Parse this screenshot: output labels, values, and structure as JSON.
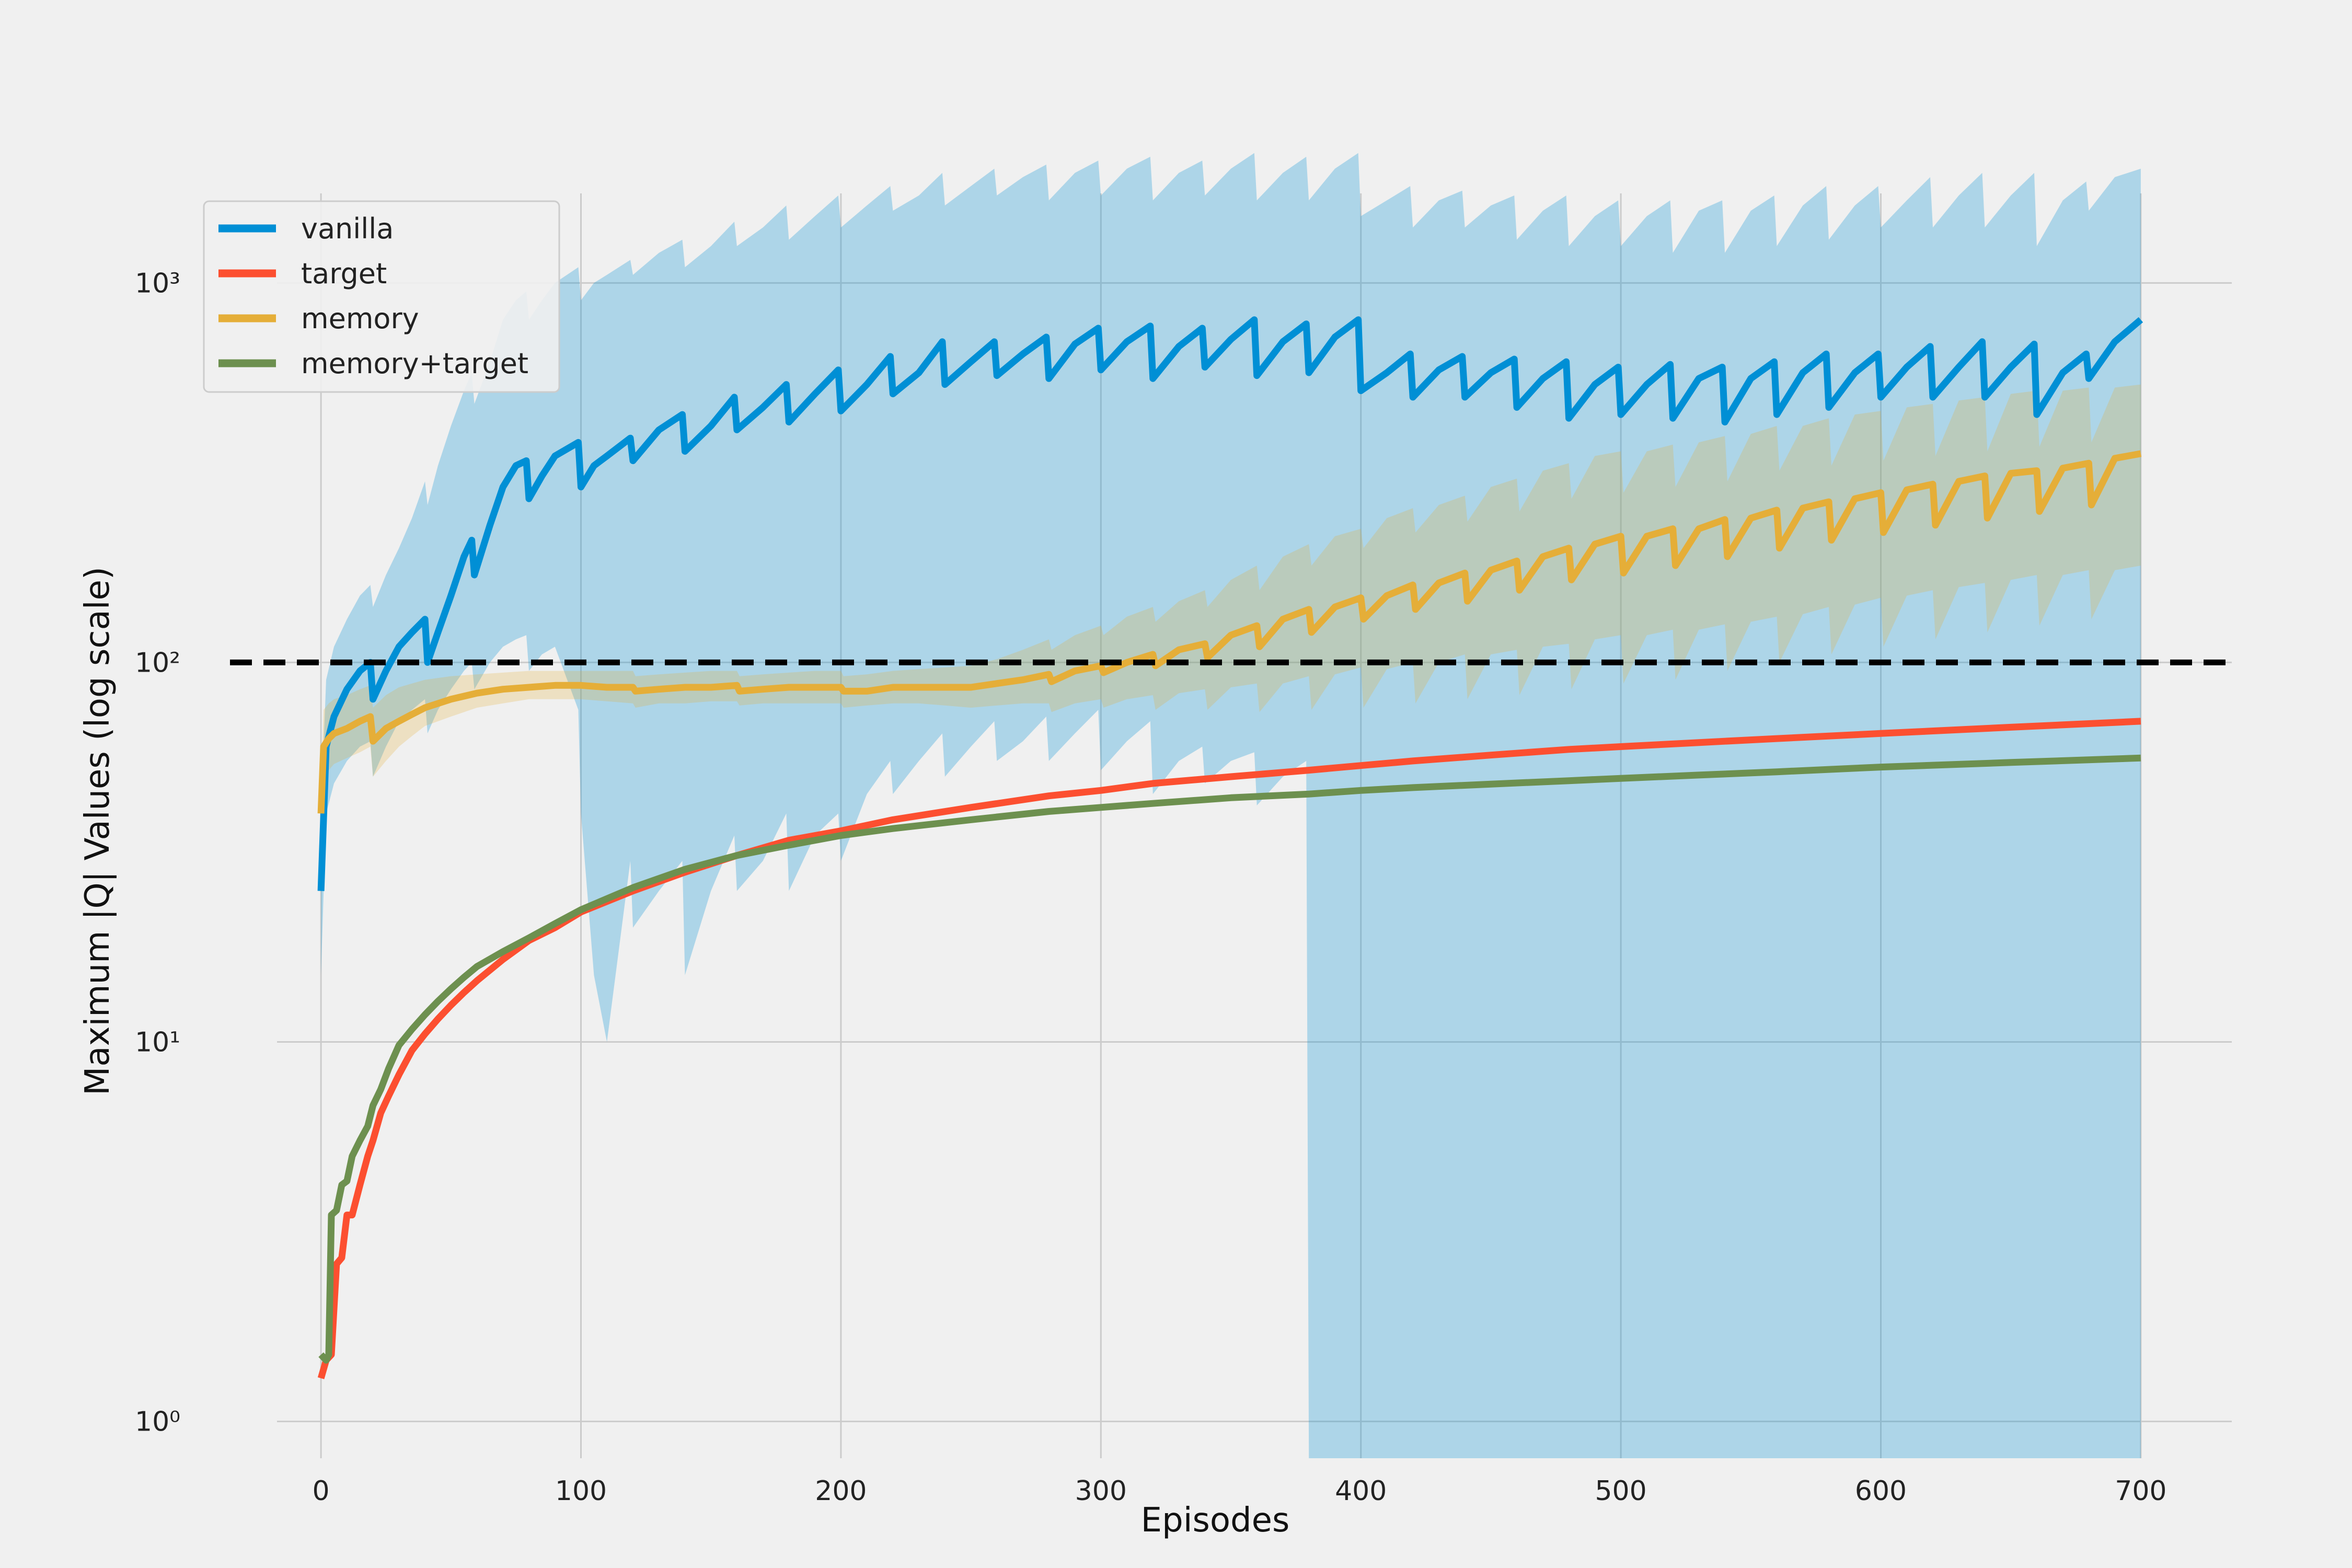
{
  "chart_data": {
    "type": "line",
    "title": "",
    "xlabel": "Episodes",
    "ylabel": "Maximum |Q| Values (log scale)",
    "yscale": "log",
    "xlim": [
      -35,
      735
    ],
    "ylim": [
      0.8,
      2600
    ],
    "xticks": [
      0,
      100,
      200,
      300,
      400,
      500,
      600,
      700
    ],
    "yticks": [
      {
        "value": 1,
        "label": "10⁰"
      },
      {
        "value": 10,
        "label": "10¹"
      },
      {
        "value": 100,
        "label": "10²"
      },
      {
        "value": 1000,
        "label": "10³"
      }
    ],
    "grid": true,
    "legend_position": "top-left",
    "reference_line": {
      "y": 100,
      "style": "dashed",
      "color": "#000000"
    },
    "series": [
      {
        "name": "vanilla",
        "color": "#008fd5",
        "x": [
          0,
          2,
          5,
          10,
          15,
          19,
          20,
          25,
          30,
          35,
          40,
          41,
          45,
          50,
          55,
          58,
          59,
          65,
          70,
          75,
          79,
          80,
          85,
          90,
          99,
          100,
          105,
          110,
          119,
          120,
          130,
          139,
          140,
          150,
          159,
          160,
          170,
          179,
          180,
          190,
          199,
          200,
          210,
          219,
          220,
          230,
          239,
          240,
          250,
          259,
          260,
          270,
          279,
          280,
          290,
          299,
          300,
          310,
          319,
          320,
          330,
          339,
          340,
          350,
          359,
          360,
          370,
          379,
          380,
          390,
          399,
          400,
          410,
          419,
          420,
          430,
          439,
          440,
          450,
          459,
          460,
          470,
          479,
          480,
          490,
          499,
          500,
          510,
          519,
          520,
          530,
          539,
          540,
          550,
          559,
          560,
          570,
          579,
          580,
          590,
          599,
          600,
          610,
          619,
          620,
          630,
          639,
          640,
          650,
          659,
          660,
          670,
          679,
          680,
          690,
          700
        ],
        "y": [
          25,
          60,
          72,
          85,
          95,
          100,
          80,
          95,
          110,
          120,
          130,
          100,
          120,
          150,
          190,
          210,
          170,
          230,
          290,
          330,
          340,
          270,
          310,
          350,
          380,
          290,
          330,
          350,
          390,
          340,
          410,
          450,
          360,
          420,
          500,
          410,
          470,
          540,
          430,
          510,
          590,
          460,
          540,
          640,
          510,
          580,
          700,
          540,
          620,
          700,
          570,
          650,
          720,
          560,
          690,
          760,
          590,
          700,
          770,
          560,
          680,
          760,
          600,
          710,
          800,
          570,
          700,
          780,
          580,
          720,
          800,
          520,
          580,
          650,
          500,
          590,
          640,
          500,
          580,
          630,
          470,
          560,
          620,
          440,
          540,
          600,
          450,
          540,
          610,
          440,
          560,
          600,
          430,
          560,
          620,
          450,
          580,
          650,
          470,
          580,
          650,
          500,
          600,
          680,
          500,
          600,
          700,
          500,
          600,
          690,
          450,
          580,
          650,
          560,
          700,
          800
        ],
        "band_upper": [
          40,
          90,
          110,
          130,
          150,
          160,
          140,
          170,
          200,
          240,
          300,
          260,
          330,
          420,
          520,
          580,
          480,
          620,
          800,
          900,
          950,
          800,
          900,
          1000,
          1100,
          900,
          1000,
          1050,
          1150,
          1050,
          1200,
          1300,
          1100,
          1250,
          1450,
          1250,
          1400,
          1600,
          1300,
          1500,
          1700,
          1400,
          1600,
          1800,
          1550,
          1700,
          1950,
          1600,
          1800,
          2000,
          1700,
          1900,
          2050,
          1650,
          1950,
          2100,
          1700,
          2000,
          2150,
          1650,
          1950,
          2100,
          1700,
          2000,
          2200,
          1650,
          1950,
          2150,
          1650,
          2000,
          2200,
          1500,
          1650,
          1800,
          1400,
          1650,
          1750,
          1400,
          1600,
          1700,
          1300,
          1550,
          1700,
          1250,
          1500,
          1650,
          1250,
          1500,
          1650,
          1200,
          1550,
          1650,
          1200,
          1550,
          1700,
          1250,
          1600,
          1800,
          1300,
          1600,
          1800,
          1400,
          1650,
          1900,
          1400,
          1700,
          1950,
          1400,
          1700,
          1950,
          1250,
          1650,
          1850,
          1550,
          1900,
          2000
        ],
        "band_lower": [
          15,
          40,
          48,
          55,
          60,
          62,
          50,
          60,
          70,
          75,
          80,
          65,
          75,
          85,
          95,
          100,
          85,
          100,
          110,
          115,
          118,
          95,
          105,
          110,
          75,
          40,
          15,
          10,
          30,
          20,
          25,
          30,
          15,
          25,
          35,
          25,
          30,
          40,
          25,
          35,
          40,
          30,
          45,
          55,
          45,
          55,
          65,
          50,
          60,
          70,
          55,
          62,
          72,
          55,
          65,
          75,
          52,
          62,
          70,
          45,
          55,
          60,
          48,
          55,
          58,
          42,
          50,
          55,
          0.5,
          0.5,
          0.5,
          0.5,
          0.5,
          0.5,
          0.5,
          0.5,
          0.5,
          0.5,
          0.5,
          0.5,
          0.5,
          0.5,
          0.5,
          0.5,
          0.5,
          0.5,
          0.5,
          0.5,
          0.5,
          0.5,
          0.5,
          0.5,
          0.5,
          0.5,
          0.5,
          0.5,
          0.5,
          0.5,
          0.5,
          0.5,
          0.5,
          0.5,
          0.5,
          0.5,
          0.5,
          0.5,
          0.5,
          0.5,
          0.5,
          0.5,
          0.5,
          0.5,
          0.5,
          0.5,
          0.5,
          0.5
        ]
      },
      {
        "name": "target",
        "color": "#fc4f30",
        "x": [
          0,
          2,
          4,
          6,
          8,
          10,
          12,
          15,
          18,
          20,
          23,
          26,
          30,
          35,
          40,
          45,
          50,
          55,
          60,
          70,
          80,
          90,
          100,
          120,
          140,
          160,
          180,
          200,
          220,
          250,
          280,
          300,
          320,
          350,
          380,
          400,
          420,
          450,
          480,
          500,
          530,
          560,
          600,
          650,
          700
        ],
        "y": [
          1.3,
          1.45,
          1.5,
          2.6,
          2.7,
          3.5,
          3.5,
          4.2,
          5.0,
          5.5,
          6.5,
          7.2,
          8.2,
          9.5,
          10.5,
          11.5,
          12.5,
          13.5,
          14.5,
          16.5,
          18.5,
          20,
          22,
          25,
          28,
          31,
          34,
          36,
          38.5,
          41.5,
          44.5,
          46,
          48,
          50,
          52,
          53.5,
          55,
          57,
          59,
          60,
          61.5,
          63,
          65,
          67.5,
          70
        ]
      },
      {
        "name": "memory",
        "color": "#e5ae38",
        "x": [
          0,
          1,
          3,
          5,
          10,
          15,
          19,
          20,
          25,
          30,
          35,
          40,
          50,
          60,
          70,
          80,
          90,
          100,
          110,
          120,
          121,
          130,
          140,
          150,
          160,
          161,
          170,
          180,
          190,
          200,
          201,
          210,
          220,
          230,
          240,
          250,
          260,
          270,
          280,
          281,
          290,
          300,
          301,
          310,
          320,
          321,
          330,
          340,
          341,
          350,
          360,
          361,
          370,
          380,
          381,
          390,
          400,
          401,
          410,
          420,
          421,
          430,
          440,
          441,
          450,
          460,
          461,
          470,
          480,
          481,
          490,
          500,
          501,
          510,
          520,
          521,
          530,
          540,
          541,
          550,
          560,
          561,
          570,
          580,
          581,
          590,
          600,
          601,
          610,
          620,
          621,
          630,
          640,
          641,
          650,
          660,
          661,
          670,
          680,
          681,
          690,
          700
        ],
        "y": [
          40,
          60,
          63,
          65,
          67,
          70,
          72,
          62,
          67,
          70,
          73,
          76,
          80,
          83,
          85,
          86,
          87,
          87,
          86,
          86,
          84,
          85,
          86,
          86,
          87,
          84,
          85,
          86,
          86,
          86,
          84,
          84,
          86,
          86,
          86,
          86,
          88,
          90,
          93,
          89,
          95,
          98,
          94,
          100,
          105,
          98,
          108,
          112,
          103,
          118,
          125,
          110,
          130,
          138,
          120,
          140,
          148,
          130,
          150,
          160,
          138,
          162,
          172,
          145,
          175,
          185,
          155,
          190,
          200,
          165,
          205,
          215,
          172,
          215,
          225,
          180,
          225,
          238,
          190,
          240,
          252,
          200,
          255,
          265,
          210,
          270,
          280,
          220,
          285,
          295,
          230,
          300,
          310,
          240,
          315,
          320,
          250,
          325,
          335,
          260,
          345,
          355
        ],
        "band_upper": [
          45,
          75,
          78,
          80,
          82,
          85,
          87,
          76,
          82,
          86,
          88,
          90,
          92,
          93,
          94,
          95,
          95,
          95,
          95,
          95,
          92,
          93,
          94,
          95,
          95,
          92,
          93,
          94,
          95,
          95,
          92,
          93,
          95,
          96,
          97,
          98,
          102,
          108,
          115,
          108,
          118,
          125,
          118,
          132,
          140,
          128,
          145,
          155,
          140,
          165,
          180,
          155,
          190,
          205,
          180,
          215,
          225,
          200,
          240,
          255,
          220,
          260,
          275,
          235,
          290,
          305,
          250,
          320,
          335,
          270,
          350,
          360,
          280,
          360,
          375,
          290,
          380,
          395,
          300,
          400,
          420,
          320,
          420,
          440,
          330,
          450,
          460,
          340,
          470,
          480,
          350,
          490,
          500,
          360,
          510,
          520,
          370,
          520,
          530,
          380,
          530,
          540
        ],
        "band_lower": [
          35,
          50,
          52,
          54,
          56,
          58,
          60,
          50,
          55,
          60,
          64,
          68,
          72,
          76,
          78,
          80,
          80,
          80,
          79,
          78,
          76,
          78,
          78,
          79,
          79,
          77,
          78,
          78,
          78,
          78,
          76,
          77,
          78,
          78,
          77,
          76,
          77,
          78,
          78,
          74,
          78,
          80,
          76,
          80,
          82,
          75,
          83,
          85,
          75,
          86,
          88,
          74,
          88,
          92,
          75,
          93,
          97,
          76,
          96,
          100,
          78,
          100,
          105,
          80,
          105,
          108,
          82,
          110,
          112,
          85,
          115,
          118,
          88,
          118,
          122,
          90,
          122,
          126,
          95,
          128,
          132,
          100,
          134,
          140,
          105,
          142,
          148,
          110,
          150,
          155,
          115,
          158,
          162,
          120,
          165,
          170,
          125,
          170,
          175,
          130,
          175,
          180
        ]
      },
      {
        "name": "memory+target",
        "color": "#6d904f",
        "x": [
          0,
          2,
          3,
          4,
          6,
          8,
          10,
          12,
          15,
          18,
          20,
          23,
          26,
          30,
          35,
          40,
          45,
          50,
          55,
          60,
          70,
          80,
          90,
          100,
          120,
          140,
          160,
          180,
          200,
          220,
          250,
          280,
          300,
          320,
          350,
          380,
          400,
          420,
          450,
          480,
          500,
          530,
          560,
          600,
          650,
          700
        ],
        "y": [
          1.5,
          1.45,
          1.5,
          3.5,
          3.6,
          4.2,
          4.3,
          5.0,
          5.5,
          6.0,
          6.8,
          7.5,
          8.5,
          9.8,
          10.8,
          11.8,
          12.8,
          13.8,
          14.8,
          15.8,
          17.3,
          18.8,
          20.5,
          22.3,
          25.5,
          28.5,
          31,
          33,
          35,
          36.5,
          38.5,
          40.5,
          41.5,
          42.5,
          44,
          45,
          46,
          46.8,
          47.8,
          48.8,
          49.5,
          50.5,
          51.5,
          53,
          54.5,
          56
        ]
      }
    ]
  }
}
